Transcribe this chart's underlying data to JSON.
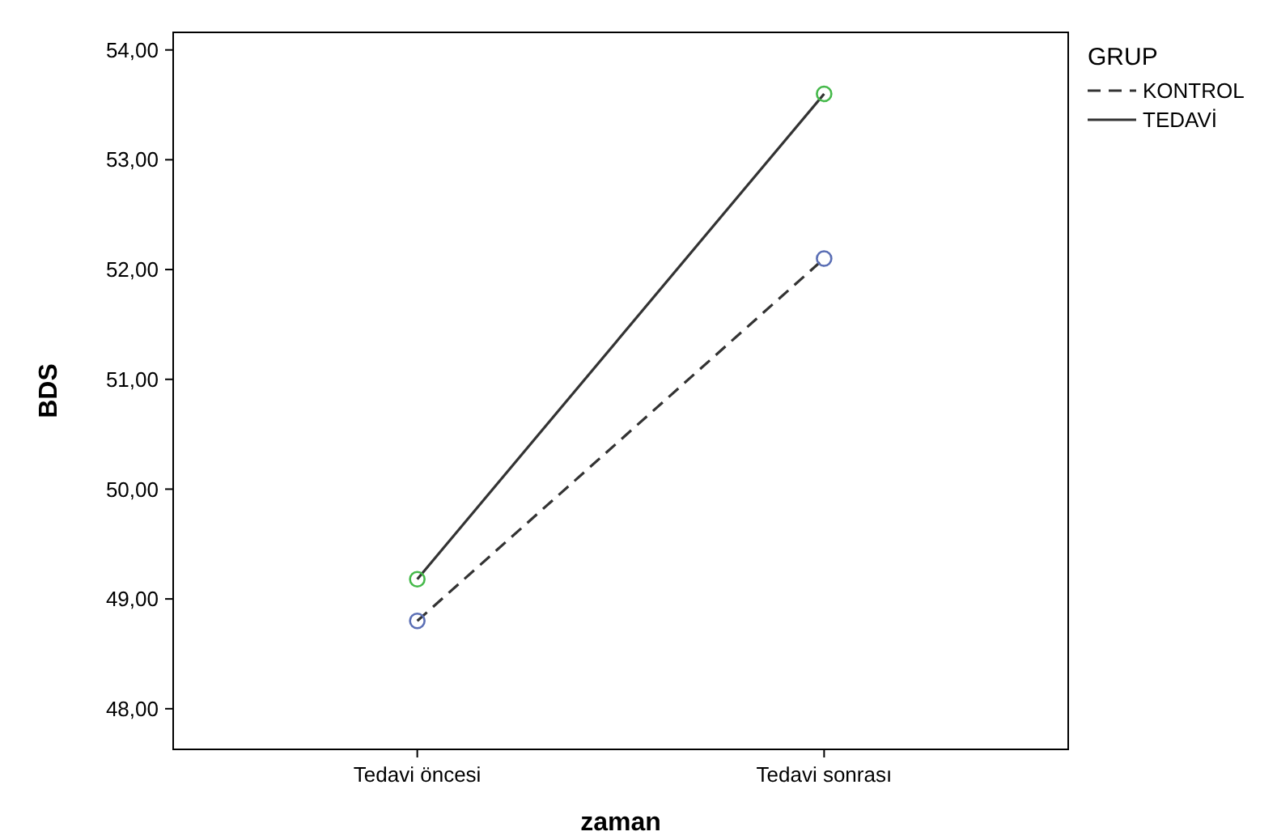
{
  "chart_data": {
    "type": "line",
    "xlabel": "zaman",
    "ylabel": "BDS",
    "legend_title": "GRUP",
    "legend": "right",
    "categories": [
      "Tedavi öncesi",
      "Tedavi sonrası"
    ],
    "series": [
      {
        "name": "KONTROL",
        "color": "#333333",
        "colors": [
          "#5b6fb5",
          "#5b6fb5"
        ],
        "line_style": "dashed",
        "values": [
          48.8,
          52.1
        ]
      },
      {
        "name": "TEDAVİ",
        "color": "#333333",
        "colors": [
          "#45b94a",
          "#45b94a"
        ],
        "line_style": "solid",
        "values": [
          49.18,
          53.6
        ]
      }
    ],
    "marker": "circle",
    "ylim": [
      47.63,
      54.16
    ],
    "yticks": [
      {
        "value": 48,
        "label": "48,00"
      },
      {
        "value": 49,
        "label": "49,00"
      },
      {
        "value": 50,
        "label": "50,00"
      },
      {
        "value": 51,
        "label": "51,00"
      },
      {
        "value": 52,
        "label": "52,00"
      },
      {
        "value": 53,
        "label": "53,00"
      },
      {
        "value": 54,
        "label": "54,00"
      }
    ]
  }
}
